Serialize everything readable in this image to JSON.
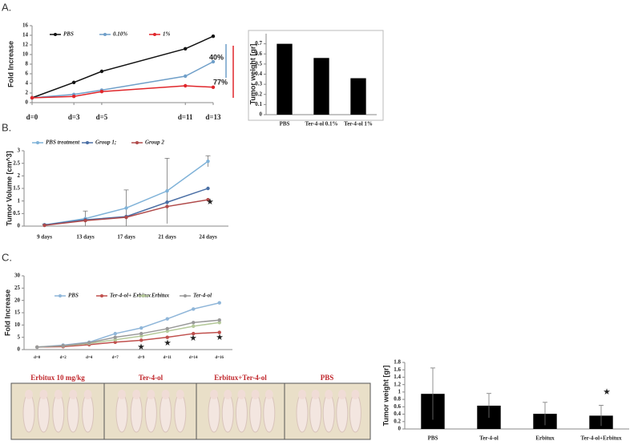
{
  "panel_labels": [
    "A.",
    "B.",
    "C."
  ],
  "photo_captions": [
    "Erbitux 10 mg/kg",
    "Ter-4-ol",
    "Erbitux+Ter-4-ol",
    "PBS"
  ],
  "chart_data": [
    {
      "type": "line",
      "y_label": "Fold Increase",
      "x": [
        0,
        3,
        5,
        11,
        13
      ],
      "xlim": [
        0,
        13
      ],
      "xticks": [
        {
          "value": 0,
          "label": "d=0"
        },
        {
          "value": 3,
          "label": "d=3"
        },
        {
          "value": 5,
          "label": "d=5"
        },
        {
          "value": 11,
          "label": "d=11"
        },
        {
          "value": 13,
          "label": "d=13"
        }
      ],
      "ylim": [
        0,
        16
      ],
      "yticks": [
        0,
        2,
        4,
        6,
        8,
        10,
        12,
        14,
        16
      ],
      "series": [
        {
          "name": "PBS",
          "color": "#111111",
          "values": [
            1,
            4.2,
            6.5,
            11.2,
            13.8
          ]
        },
        {
          "name": "0.10%",
          "color": "#6f9fc9",
          "values": [
            1,
            1.7,
            2.6,
            5.5,
            8.5
          ]
        },
        {
          "name": "1%",
          "color": "#e0262b",
          "values": [
            1,
            1.3,
            2.3,
            3.5,
            3.2
          ]
        }
      ],
      "annotations": [
        {
          "text": "40%",
          "color": "#6f9fc9"
        },
        {
          "text": "77%",
          "color": "#e0262b"
        }
      ]
    },
    {
      "type": "bar",
      "y_label": "Tumor weight [gr]",
      "categories": [
        "PBS",
        "Ter-4-ol  0.1%",
        "Ter-4-ol 1%"
      ],
      "values": [
        0.7,
        0.56,
        0.36
      ],
      "color": "#000000",
      "ylim": [
        0,
        0.8
      ],
      "yticks": [
        0,
        0.1,
        0.2,
        0.3,
        0.4,
        0.5,
        0.6,
        0.7
      ]
    },
    {
      "type": "line",
      "y_label": "Tumor Volume [cm^3]",
      "categories": [
        "9 days",
        "13 days",
        "17 days",
        "21 days",
        "24 days"
      ],
      "ylim": [
        0,
        3
      ],
      "yticks": [
        0,
        0.5,
        1,
        1.5,
        2,
        2.5,
        3
      ],
      "series": [
        {
          "name": "PBS treatment",
          "color": "#7fb2d8",
          "values": [
            0.05,
            0.3,
            0.72,
            1.4,
            2.58
          ],
          "errors": [
            0.03,
            0.3,
            0.72,
            1.3,
            0.22
          ]
        },
        {
          "name": "Group 1;",
          "color": "#4a6fa5",
          "values": [
            0.05,
            0.25,
            0.38,
            0.95,
            1.5
          ]
        },
        {
          "name": "Group 2",
          "color": "#b04a4a",
          "values": [
            0.03,
            0.22,
            0.35,
            0.78,
            1.05
          ]
        }
      ],
      "annotations": [
        {
          "text": "★"
        }
      ]
    },
    {
      "type": "line",
      "y_label": "Fold Increase",
      "categories": [
        "d=0",
        "d=2",
        "d=4",
        "d=7",
        "d=9",
        "d=11",
        "d=14",
        "d=16"
      ],
      "ylim": [
        0,
        30
      ],
      "yticks": [
        0,
        5,
        10,
        15,
        20,
        25,
        30
      ],
      "series": [
        {
          "name": "PBS",
          "color": "#8fb6d9",
          "values": [
            1,
            1.8,
            3,
            6.5,
            8.8,
            12.5,
            16.5,
            19
          ]
        },
        {
          "name": "Ter-4-ol+ Erbitux",
          "color": "#c0504d",
          "values": [
            1,
            1.2,
            2,
            3,
            3.8,
            5,
            6.5,
            7
          ]
        },
        {
          "name": "Erbitux",
          "color": "#b5c99a",
          "values": [
            1,
            1.5,
            2.5,
            4,
            5.5,
            7.5,
            9.5,
            11
          ]
        },
        {
          "name": "Ter-4-ol",
          "color": "#999999",
          "values": [
            1,
            1.6,
            2.8,
            5,
            6.5,
            8.5,
            11,
            12
          ]
        }
      ],
      "annotations": [
        {
          "text": "★"
        },
        {
          "text": "★"
        },
        {
          "text": "★"
        },
        {
          "text": "★"
        }
      ]
    },
    {
      "type": "bar",
      "y_label": "Tumor weight [gr]",
      "categories": [
        "PBS",
        "Ter-4-ol",
        "Erbitux",
        "Ter-4-ol+Erbitux"
      ],
      "values": [
        0.95,
        0.63,
        0.41,
        0.36
      ],
      "errors": [
        0.7,
        0.33,
        0.31,
        0.28
      ],
      "color": "#000000",
      "ylim": [
        0,
        1.8
      ],
      "yticks": [
        0,
        0.2,
        0.4,
        0.6,
        0.8,
        1,
        1.2,
        1.4,
        1.6,
        1.8
      ],
      "annotations": [
        {
          "text": "★"
        }
      ]
    }
  ]
}
